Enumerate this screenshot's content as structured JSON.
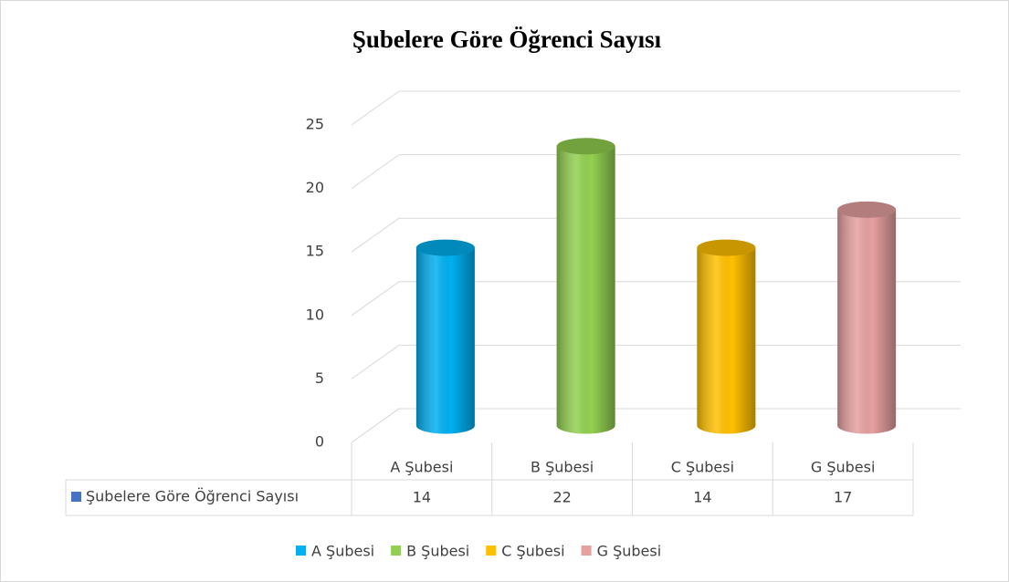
{
  "chart_data": {
    "type": "bar3d",
    "title": "Şubelere Göre Öğrenci Sayısı",
    "categories": [
      "A Şubesi",
      "B Şubesi",
      "C Şubesi",
      "G Şubesi"
    ],
    "series": [
      {
        "name": "Şubelere Göre Öğrenci Sayısı",
        "color": "#4472c4",
        "values": [
          14,
          22,
          14,
          17
        ]
      }
    ],
    "colors": [
      "#00b0f0",
      "#92d050",
      "#ffc000",
      "#e6a0a0"
    ],
    "ylim": [
      0,
      25
    ],
    "yticks": [
      0,
      5,
      10,
      15,
      20,
      25
    ],
    "grid": true,
    "legend": "bottom"
  }
}
